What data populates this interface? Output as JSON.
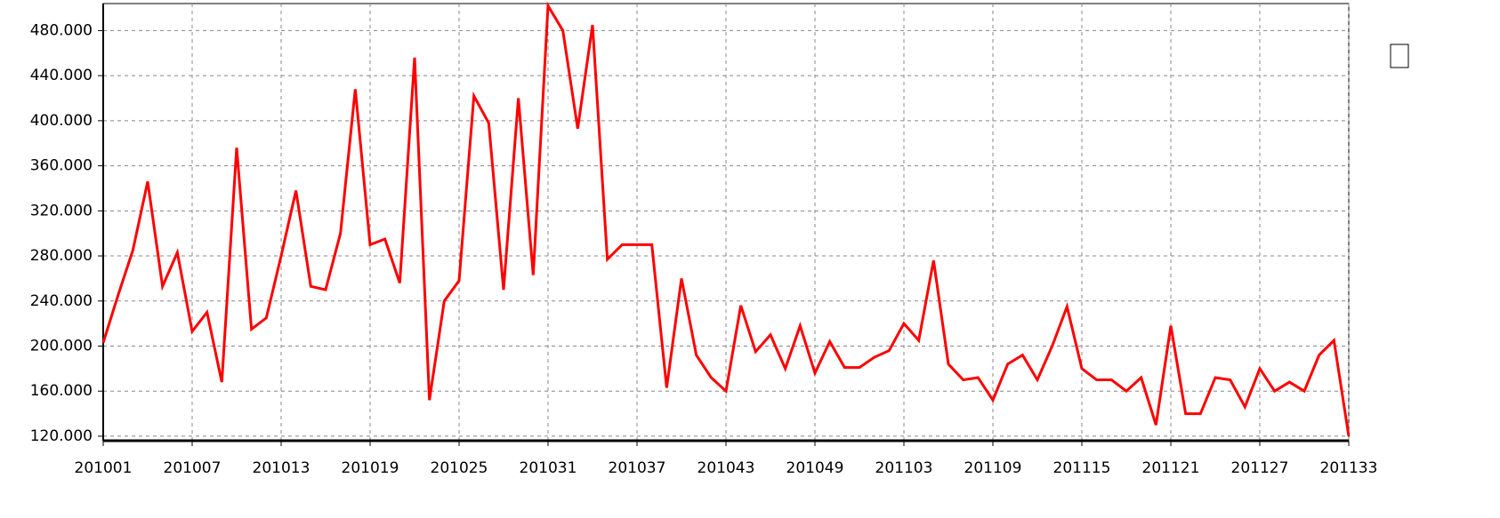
{
  "chart_data": {
    "type": "line",
    "categories": [
      "201001",
      null,
      null,
      null,
      null,
      null,
      "201007",
      null,
      null,
      null,
      null,
      null,
      "201013",
      null,
      null,
      null,
      null,
      null,
      "201019",
      null,
      null,
      null,
      null,
      null,
      "201025",
      null,
      null,
      null,
      null,
      null,
      "201031",
      null,
      null,
      null,
      null,
      null,
      "201037",
      null,
      null,
      null,
      null,
      null,
      "201043",
      null,
      null,
      null,
      null,
      null,
      "201049",
      null,
      null,
      null,
      null,
      null,
      "201103",
      null,
      null,
      null,
      null,
      null,
      "201109",
      null,
      null,
      null,
      null,
      null,
      "201115",
      null,
      null,
      null,
      null,
      null,
      "201121",
      null,
      null,
      null,
      null,
      null,
      "201127",
      null,
      null,
      null,
      null,
      null,
      "201133"
    ],
    "values": [
      203,
      245,
      285,
      346,
      253,
      283,
      213,
      230,
      168,
      376,
      215,
      225,
      280,
      338,
      253,
      250,
      300,
      428,
      290,
      295,
      256,
      456,
      152,
      240,
      258,
      422,
      398,
      250,
      420,
      263,
      502,
      480,
      393,
      485,
      277,
      290,
      290,
      290,
      163,
      260,
      192,
      172,
      160,
      236,
      195,
      210,
      180,
      218,
      176,
      204,
      181,
      181,
      190,
      196,
      220,
      205,
      276,
      184,
      170,
      172,
      152,
      184,
      192,
      170,
      200,
      235,
      180,
      170,
      170,
      160,
      172,
      130,
      218,
      140,
      140,
      172,
      170,
      146,
      180,
      160,
      168,
      160,
      192,
      205,
      120
    ],
    "color": "#ff0000",
    "ylim": [
      116,
      504
    ],
    "yticks": [
      {
        "value": 120,
        "label": "120.000"
      },
      {
        "value": 160,
        "label": "160.000"
      },
      {
        "value": 200,
        "label": "200.000"
      },
      {
        "value": 240,
        "label": "240.000"
      },
      {
        "value": 280,
        "label": "280.000"
      },
      {
        "value": 320,
        "label": "320.000"
      },
      {
        "value": 360,
        "label": "360.000"
      },
      {
        "value": 400,
        "label": "400.000"
      },
      {
        "value": 440,
        "label": "440.000"
      },
      {
        "value": 480,
        "label": "480.000"
      }
    ],
    "grid": true
  }
}
